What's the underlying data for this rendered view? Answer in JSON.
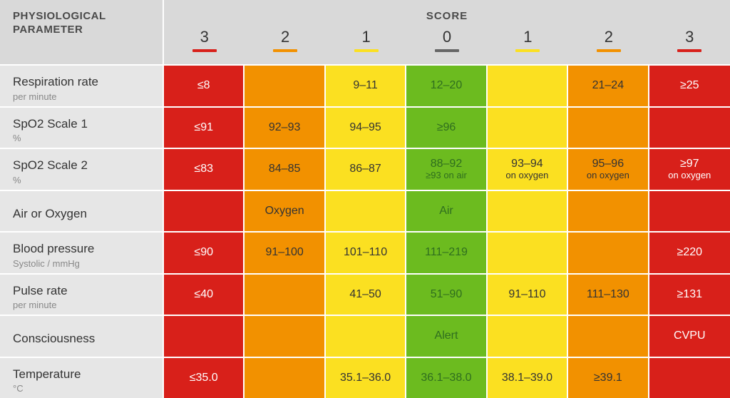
{
  "header": {
    "param_title": "PHYSIOLOGICAL\nPARAMETER",
    "score_title": "SCORE",
    "scores": [
      "3",
      "2",
      "1",
      "0",
      "1",
      "2",
      "3"
    ],
    "underline_colors": [
      "#d8201a",
      "#f29100",
      "#fbe021",
      "#666666",
      "#fbe021",
      "#f29100",
      "#d8201a"
    ]
  },
  "colors": {
    "red": "#d8201a",
    "orange": "#f29100",
    "yellow": "#fbe021",
    "green": "#6cbb1f",
    "label_bg": "#e6e6e6",
    "header_bg": "#d9d9d9",
    "white": "#ffffff",
    "text": "#333333",
    "subtext": "#888888",
    "green_text": "#2f6e1f"
  },
  "rows": [
    {
      "label": "Respiration rate",
      "sublabel": "per minute",
      "cells": [
        {
          "bg": "red",
          "text": "≤8",
          "white": true
        },
        {
          "bg": "orange",
          "text": ""
        },
        {
          "bg": "yellow",
          "text": "9–11"
        },
        {
          "bg": "green",
          "text": "12–20",
          "green": true
        },
        {
          "bg": "yellow",
          "text": ""
        },
        {
          "bg": "orange",
          "text": "21–24"
        },
        {
          "bg": "red",
          "text": "≥25",
          "white": true
        }
      ]
    },
    {
      "label": "SpO2 Scale 1",
      "sublabel": "%",
      "cells": [
        {
          "bg": "red",
          "text": "≤91",
          "white": true
        },
        {
          "bg": "orange",
          "text": "92–93"
        },
        {
          "bg": "yellow",
          "text": "94–95"
        },
        {
          "bg": "green",
          "text": "≥96",
          "green": true
        },
        {
          "bg": "yellow",
          "text": ""
        },
        {
          "bg": "orange",
          "text": ""
        },
        {
          "bg": "red",
          "text": ""
        }
      ]
    },
    {
      "label": "SpO2 Scale 2",
      "sublabel": "%",
      "cells": [
        {
          "bg": "red",
          "text": "≤83",
          "white": true
        },
        {
          "bg": "orange",
          "text": "84–85"
        },
        {
          "bg": "yellow",
          "text": "86–87"
        },
        {
          "bg": "green",
          "text": "88–92",
          "sub": "≥93 on air",
          "green": true
        },
        {
          "bg": "yellow",
          "text": "93–94",
          "sub": "on oxygen"
        },
        {
          "bg": "orange",
          "text": "95–96",
          "sub": "on oxygen"
        },
        {
          "bg": "red",
          "text": "≥97",
          "sub": "on oxygen",
          "white": true
        }
      ]
    },
    {
      "label": "Air or Oxygen",
      "sublabel": "",
      "cells": [
        {
          "bg": "red",
          "text": ""
        },
        {
          "bg": "orange",
          "text": "Oxygen"
        },
        {
          "bg": "yellow",
          "text": ""
        },
        {
          "bg": "green",
          "text": "Air",
          "green": true
        },
        {
          "bg": "yellow",
          "text": ""
        },
        {
          "bg": "orange",
          "text": ""
        },
        {
          "bg": "red",
          "text": ""
        }
      ]
    },
    {
      "label": "Blood pressure",
      "sublabel": "Systolic / mmHg",
      "cells": [
        {
          "bg": "red",
          "text": "≤90",
          "white": true
        },
        {
          "bg": "orange",
          "text": "91–100"
        },
        {
          "bg": "yellow",
          "text": "101–110"
        },
        {
          "bg": "green",
          "text": "111–219",
          "green": true
        },
        {
          "bg": "yellow",
          "text": ""
        },
        {
          "bg": "orange",
          "text": ""
        },
        {
          "bg": "red",
          "text": "≥220",
          "white": true
        }
      ]
    },
    {
      "label": "Pulse rate",
      "sublabel": "per minute",
      "cells": [
        {
          "bg": "red",
          "text": "≤40",
          "white": true
        },
        {
          "bg": "orange",
          "text": ""
        },
        {
          "bg": "yellow",
          "text": "41–50"
        },
        {
          "bg": "green",
          "text": "51–90",
          "green": true
        },
        {
          "bg": "yellow",
          "text": "91–110"
        },
        {
          "bg": "orange",
          "text": "111–130"
        },
        {
          "bg": "red",
          "text": "≥131",
          "white": true
        }
      ]
    },
    {
      "label": "Consciousness",
      "sublabel": "",
      "cells": [
        {
          "bg": "red",
          "text": ""
        },
        {
          "bg": "orange",
          "text": ""
        },
        {
          "bg": "yellow",
          "text": ""
        },
        {
          "bg": "green",
          "text": "Alert",
          "green": true
        },
        {
          "bg": "yellow",
          "text": ""
        },
        {
          "bg": "orange",
          "text": ""
        },
        {
          "bg": "red",
          "text": "CVPU",
          "white": true
        }
      ]
    },
    {
      "label": "Temperature",
      "sublabel": "°C",
      "cells": [
        {
          "bg": "red",
          "text": "≤35.0",
          "white": true
        },
        {
          "bg": "orange",
          "text": ""
        },
        {
          "bg": "yellow",
          "text": "35.1–36.0"
        },
        {
          "bg": "green",
          "text": "36.1–38.0",
          "green": true
        },
        {
          "bg": "yellow",
          "text": "38.1–39.0"
        },
        {
          "bg": "orange",
          "text": "≥39.1"
        },
        {
          "bg": "red",
          "text": ""
        }
      ]
    }
  ]
}
